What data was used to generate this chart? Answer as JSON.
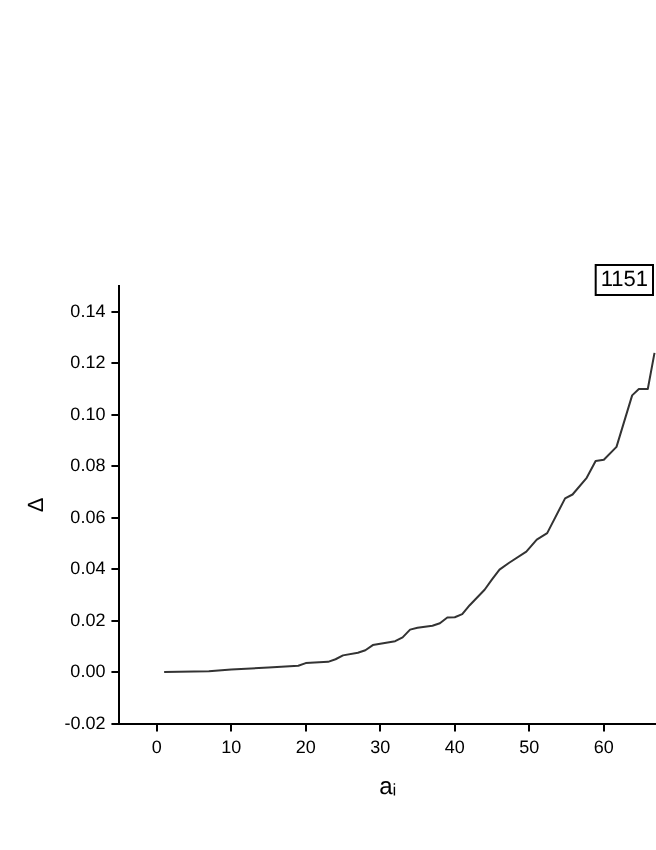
{
  "chart_data": {
    "type": "line",
    "xlabel": "aᵢ",
    "ylabel": "Δ",
    "annotations": [
      "1151"
    ],
    "xlim": [
      -5,
      67
    ],
    "xticks": [
      0,
      10,
      20,
      30,
      40,
      50,
      60
    ],
    "ylim": [
      -0.02,
      0.15
    ],
    "yticks": [
      -0.02,
      {
        "value": 0,
        "label": "0.00"
      },
      0.02,
      0.04,
      0.06,
      0.08,
      {
        "value": 0.1,
        "label": "0.10"
      },
      0.12,
      0.14
    ],
    "grid": false,
    "legend": false,
    "marker": "none",
    "series": [
      {
        "color": "#333333",
        "x": [
          1,
          7,
          10,
          15,
          19,
          20,
          23,
          24,
          25,
          27,
          28,
          29,
          31,
          32,
          33,
          34,
          35,
          37,
          38,
          39,
          40,
          41,
          42,
          43,
          44,
          45,
          46,
          47.3,
          49.6,
          51,
          52.4,
          54.8,
          55.8,
          57.7,
          58.9,
          60,
          61.7,
          63.8,
          64.7,
          65.9,
          66.8
        ],
        "values": [
          0,
          0.0003,
          0.001,
          0.0018,
          0.0025,
          0.0035,
          0.004,
          0.005,
          0.0065,
          0.0075,
          0.0085,
          0.0105,
          0.0115,
          0.012,
          0.0135,
          0.0165,
          0.0172,
          0.018,
          0.019,
          0.0212,
          0.0213,
          0.0225,
          0.026,
          0.029,
          0.032,
          0.036,
          0.0398,
          0.0425,
          0.0468,
          0.0515,
          0.054,
          0.0675,
          0.069,
          0.0755,
          0.082,
          0.0825,
          0.0875,
          0.1075,
          0.11,
          0.11,
          0.124
        ]
      }
    ]
  }
}
